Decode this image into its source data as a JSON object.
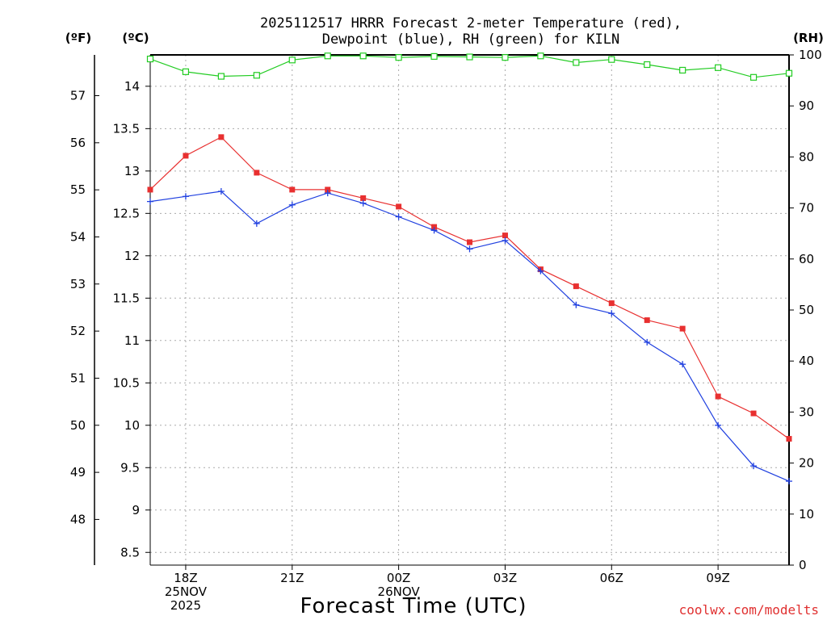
{
  "chart_data": {
    "type": "line",
    "title_line1": "2025112517 HRRR Forecast 2-meter Temperature (red),",
    "title_line2": "Dewpoint (blue), RH (green) for KILN",
    "xlabel": "Forecast Time (UTC)",
    "credit": "coolwx.com/modelts",
    "units": {
      "fahrenheit": "(ºF)",
      "celsius": "(ºC)",
      "rh": "(RH)"
    },
    "x_hours": [
      17,
      18,
      19,
      20,
      21,
      22,
      23,
      24,
      25,
      26,
      27,
      28,
      29,
      30,
      31,
      32,
      33,
      34,
      35
    ],
    "x_range": [
      17,
      35
    ],
    "x_ticks": [
      {
        "hour": 18,
        "lines": [
          "18Z",
          "25NOV",
          "2025"
        ]
      },
      {
        "hour": 21,
        "lines": [
          "21Z"
        ]
      },
      {
        "hour": 24,
        "lines": [
          "00Z",
          "26NOV"
        ]
      },
      {
        "hour": 27,
        "lines": [
          "03Z"
        ]
      },
      {
        "hour": 30,
        "lines": [
          "06Z"
        ]
      },
      {
        "hour": 33,
        "lines": [
          "09Z"
        ]
      }
    ],
    "celsius_axis": {
      "range": [
        8.35,
        14.37
      ],
      "ticks": [
        8.5,
        9,
        9.5,
        10,
        10.5,
        11,
        11.5,
        12,
        12.5,
        13,
        13.5,
        14
      ],
      "tick_labels": [
        "8.5",
        "9",
        "9.5",
        "10",
        "10.5",
        "11",
        "11.5",
        "12",
        "12.5",
        "13",
        "13.5",
        "14"
      ]
    },
    "fahrenheit_axis": {
      "ticks": [
        48,
        49,
        50,
        51,
        52,
        53,
        54,
        55,
        56,
        57
      ],
      "tick_labels": [
        "48",
        "49",
        "50",
        "51",
        "52",
        "53",
        "54",
        "55",
        "56",
        "57"
      ]
    },
    "rh_axis": {
      "range": [
        0,
        100
      ],
      "ticks": [
        0,
        10,
        20,
        30,
        40,
        50,
        60,
        70,
        80,
        90,
        100
      ],
      "tick_labels": [
        "0",
        "10",
        "20",
        "30",
        "40",
        "50",
        "60",
        "70",
        "80",
        "90",
        "100"
      ]
    },
    "series": [
      {
        "name": "Temperature",
        "unit": "C",
        "color": "#e83030",
        "marker": "filled-square",
        "values": [
          12.78,
          13.18,
          13.4,
          12.98,
          12.78,
          12.78,
          12.68,
          12.58,
          12.34,
          12.16,
          12.24,
          11.84,
          11.64,
          11.44,
          11.24,
          11.14,
          10.34,
          10.14,
          9.84
        ]
      },
      {
        "name": "Dewpoint",
        "unit": "C",
        "color": "#2040e0",
        "marker": "plus",
        "values": [
          12.64,
          12.7,
          12.76,
          12.38,
          12.6,
          12.74,
          12.62,
          12.46,
          12.3,
          12.08,
          12.18,
          11.82,
          11.42,
          11.32,
          10.98,
          10.72,
          10.0,
          9.52,
          9.34
        ]
      },
      {
        "name": "RH",
        "unit": "%",
        "color": "#22cc22",
        "marker": "open-square",
        "values": [
          99.2,
          96.7,
          95.8,
          96.0,
          99.0,
          99.8,
          99.8,
          99.5,
          99.7,
          99.6,
          99.5,
          99.8,
          98.5,
          99.1,
          98.1,
          97.0,
          97.5,
          95.6,
          96.4
        ]
      }
    ]
  }
}
